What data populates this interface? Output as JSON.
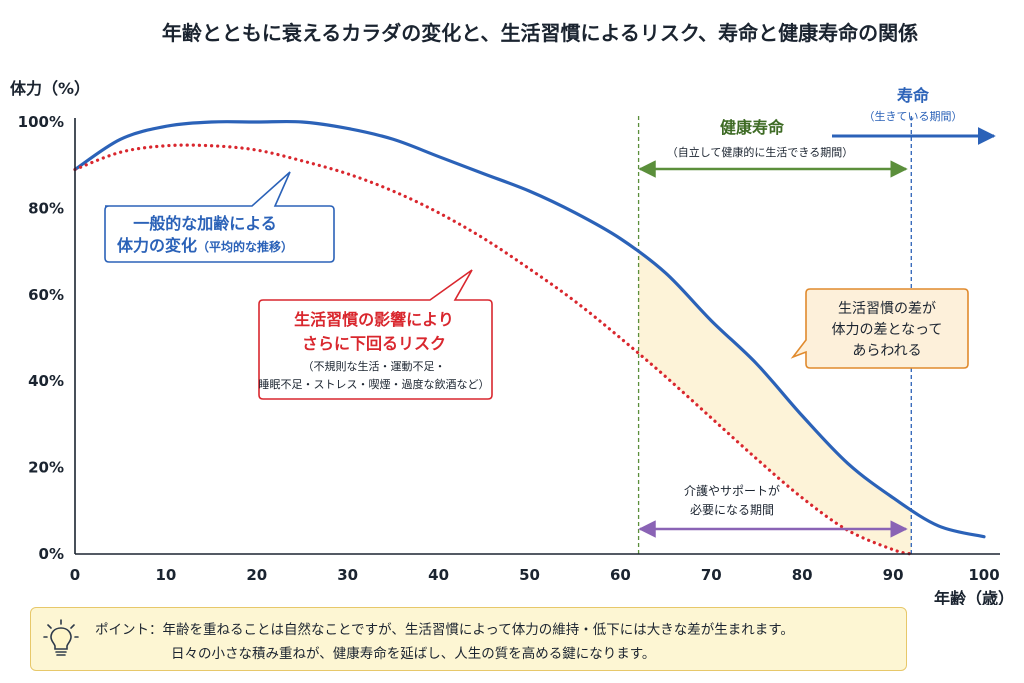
{
  "chart_data": {
    "type": "line",
    "title": "年齢とともに衰えるカラダの変化と、生活習慣によるリスク、寿命と健康寿命の関係",
    "xlabel": "年齢（歳）",
    "ylabel": "体力（%）",
    "xlim": [
      0,
      100
    ],
    "ylim": [
      0,
      100
    ],
    "x_ticks": [
      "0",
      "10",
      "20",
      "30",
      "40",
      "50",
      "60",
      "70",
      "80",
      "90",
      "100"
    ],
    "y_ticks": [
      "0%",
      "20%",
      "40%",
      "60%",
      "80%",
      "100%"
    ],
    "grid": false,
    "series": [
      {
        "name": "一般的な加齢による体力の変化",
        "color": "#2b62b8",
        "style": "solid",
        "x": [
          0,
          5,
          10,
          15,
          20,
          25,
          30,
          35,
          40,
          45,
          50,
          55,
          60,
          65,
          70,
          75,
          80,
          85,
          90,
          95,
          100
        ],
        "y": [
          89,
          96,
          99,
          100,
          100,
          100,
          98.5,
          96,
          92,
          88,
          84,
          79,
          73,
          65,
          54,
          44,
          32,
          21,
          13,
          6.5,
          4
        ]
      },
      {
        "name": "生活習慣の影響によりさらに下回るリスク",
        "color": "#d9272e",
        "style": "dotted",
        "x": [
          0,
          5,
          10,
          15,
          20,
          25,
          30,
          35,
          40,
          45,
          50,
          55,
          60,
          65,
          70,
          75,
          80,
          85,
          90,
          92
        ],
        "y": [
          89,
          93,
          94.5,
          94.5,
          93.5,
          91,
          88,
          84,
          79,
          73,
          66,
          58.5,
          50,
          41,
          31.5,
          22,
          13,
          5.5,
          1,
          0
        ]
      }
    ],
    "vlines": [
      {
        "x": 62,
        "color": "#5b8f3b"
      },
      {
        "x": 92,
        "color": "#2b62b8"
      }
    ],
    "shaded_between_x": [
      62,
      92
    ],
    "annotations": {
      "blue_callout": {
        "line1": "一般的な加齢による",
        "line2": "体力の変化",
        "line2_small": "（平均的な推移）"
      },
      "red_callout": {
        "line1": "生活習慣の影響により",
        "line2": "さらに下回るリスク",
        "line3": "（不規則な生活・運動不足・",
        "line4": "睡眠不足・ストレス・喫煙・過度な飲酒など）"
      },
      "orange_callout": {
        "line1": "生活習慣の差が",
        "line2": "体力の差となって",
        "line3": "あらわれる"
      },
      "healthy_life": {
        "label": "健康寿命",
        "sub": "（自立して健康的に生活できる期間）"
      },
      "lifespan": {
        "label": "寿命",
        "sub": "（生きている期間）"
      },
      "care_period": {
        "line1": "介護やサポートが",
        "line2": "必要になる期間"
      }
    },
    "colors": {
      "blue": "#2b62b8",
      "red": "#d9272e",
      "green": "#5b8f3b",
      "purple": "#8a63b5",
      "orange": "#e08a2d",
      "shade": "#fdf3d8"
    }
  },
  "tip": {
    "line1": "ポイント：年齢を重ねることは自然なことですが、生活習慣によって体力の維持・低下には大きな差が生まれます。",
    "line2": "日々の小さな積み重ねが、健康寿命を延ばし、人生の質を高める鍵になります。",
    "icon": "lightbulb-icon"
  }
}
